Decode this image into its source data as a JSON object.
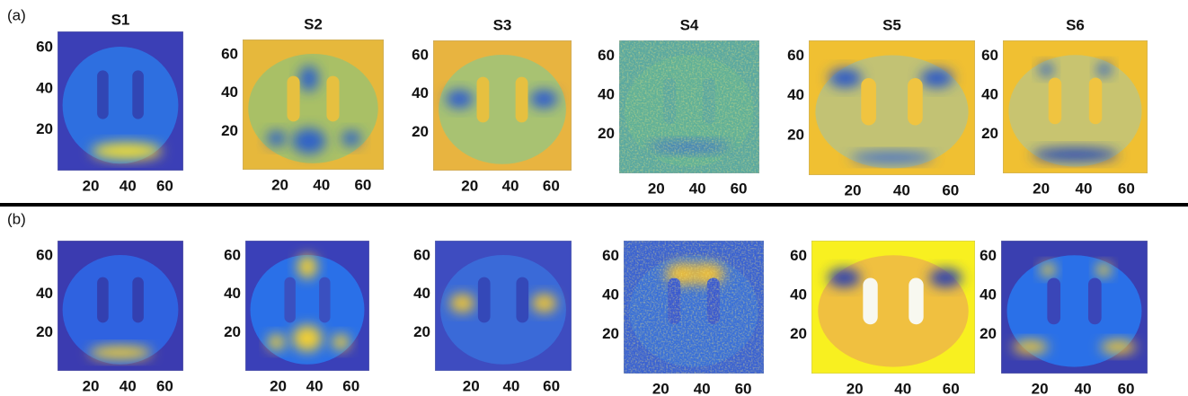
{
  "rows": [
    {
      "label": "(a)",
      "panels": [
        {
          "title": "S1",
          "yticks": [
            60,
            40,
            20
          ],
          "xticks": [
            20,
            40,
            60
          ]
        },
        {
          "title": "S2",
          "yticks": [
            60,
            40,
            20
          ],
          "xticks": [
            20,
            40,
            60
          ]
        },
        {
          "title": "S3",
          "yticks": [
            60,
            40,
            20
          ],
          "xticks": [
            20,
            40,
            60
          ]
        },
        {
          "title": "S4",
          "yticks": [
            60,
            40,
            20
          ],
          "xticks": [
            20,
            40,
            60
          ]
        },
        {
          "title": "S5",
          "yticks": [
            60,
            40,
            20
          ],
          "xticks": [
            20,
            40,
            60
          ]
        },
        {
          "title": "S6",
          "yticks": [
            60,
            40,
            20
          ],
          "xticks": [
            20,
            40,
            60
          ]
        }
      ]
    },
    {
      "label": "(b)",
      "panels": [
        {
          "yticks": [
            60,
            40,
            20
          ],
          "xticks": [
            20,
            40,
            60
          ]
        },
        {
          "yticks": [
            60,
            40,
            20
          ],
          "xticks": [
            20,
            40,
            60
          ]
        },
        {
          "yticks": [
            60,
            40,
            20
          ],
          "xticks": [
            20,
            40,
            60
          ]
        },
        {
          "yticks": [
            60,
            40,
            20
          ],
          "xticks": [
            20,
            40,
            60
          ]
        },
        {
          "yticks": [
            60,
            40,
            20
          ],
          "xticks": [
            20,
            40,
            60
          ]
        },
        {
          "yticks": [
            60,
            40,
            20
          ],
          "xticks": [
            20,
            40,
            60
          ]
        }
      ]
    }
  ]
}
